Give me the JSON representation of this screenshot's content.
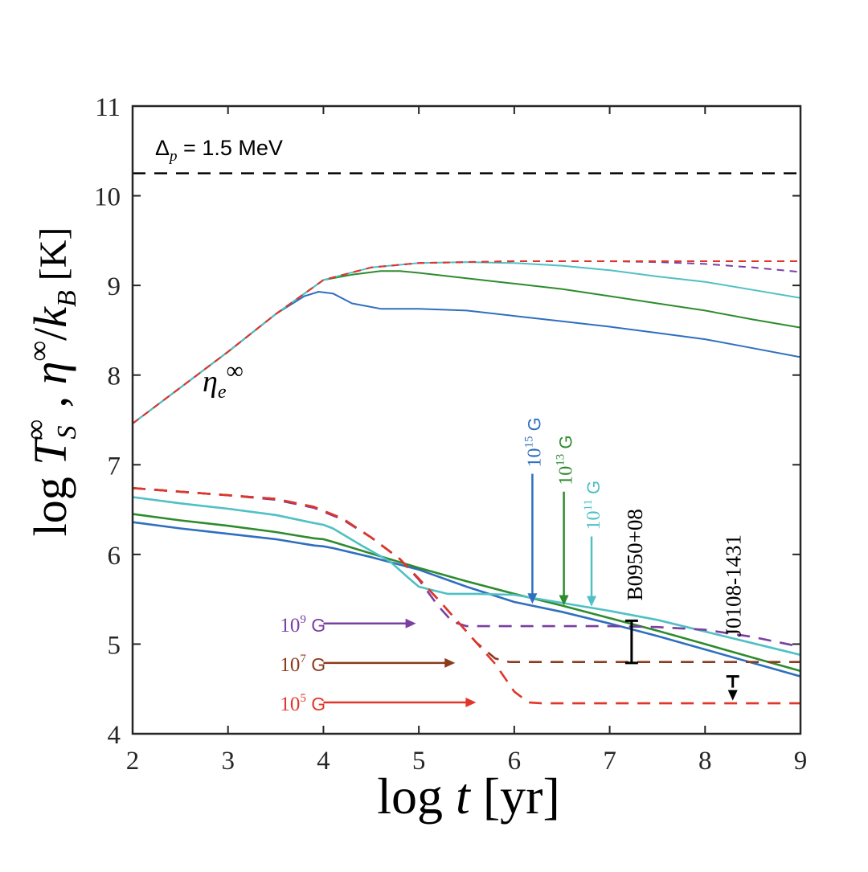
{
  "chart_data": {
    "type": "line",
    "xlabel": "log t [yr]",
    "ylabel": "log T_S^∞ , η^∞/k_B [K]",
    "xlim": [
      2,
      9
    ],
    "ylim": [
      4,
      11
    ],
    "xticks": [
      2,
      3,
      4,
      5,
      6,
      7,
      8,
      9
    ],
    "yticks": [
      4,
      5,
      6,
      7,
      8,
      9,
      10,
      11
    ],
    "grid": false,
    "annotation_delta": "Δp = 1.5 MeV",
    "eta_label": "ηe∞",
    "reference_line": {
      "name": "Δp level",
      "y": 10.25,
      "color": "#000000",
      "style": "dashed"
    },
    "eta_series": [
      {
        "name": "η∞ 10^15 G",
        "color": "#2f6fbf",
        "style": "solid",
        "x": [
          2.0,
          2.5,
          3.0,
          3.5,
          3.8,
          3.95,
          4.1,
          4.3,
          4.6,
          5.0,
          5.5,
          6.0,
          6.5,
          7.0,
          7.5,
          8.0,
          8.5,
          9.0
        ],
        "y": [
          7.46,
          7.86,
          8.26,
          8.68,
          8.88,
          8.93,
          8.91,
          8.8,
          8.74,
          8.74,
          8.72,
          8.66,
          8.6,
          8.54,
          8.47,
          8.4,
          8.3,
          8.2
        ]
      },
      {
        "name": "η∞ 10^13 G",
        "color": "#2e8b2e",
        "style": "solid",
        "x": [
          2.0,
          2.5,
          3.0,
          3.5,
          4.0,
          4.3,
          4.6,
          4.8,
          5.0,
          5.5,
          6.0,
          6.5,
          7.0,
          7.5,
          8.0,
          8.5,
          9.0
        ],
        "y": [
          7.46,
          7.86,
          8.26,
          8.68,
          9.06,
          9.12,
          9.16,
          9.16,
          9.14,
          9.08,
          9.02,
          8.96,
          8.88,
          8.8,
          8.72,
          8.62,
          8.53
        ]
      },
      {
        "name": "η∞ 10^11 G",
        "color": "#4fc0c4",
        "style": "solid",
        "x": [
          2.0,
          2.5,
          3.0,
          3.5,
          4.0,
          4.5,
          5.0,
          5.5,
          6.0,
          6.5,
          7.0,
          7.5,
          8.0,
          8.5,
          9.0
        ],
        "y": [
          7.46,
          7.86,
          8.26,
          8.68,
          9.06,
          9.2,
          9.25,
          9.26,
          9.25,
          9.22,
          9.17,
          9.1,
          9.04,
          8.95,
          8.86
        ]
      },
      {
        "name": "η∞ 10^9 G",
        "color": "#7b3ea3",
        "style": "dashed",
        "x": [
          2.0,
          2.5,
          3.0,
          3.5,
          4.0,
          4.5,
          5.0,
          5.5,
          6.0,
          6.5,
          7.0,
          7.5,
          8.0,
          8.5,
          9.0
        ],
        "y": [
          7.46,
          7.86,
          8.26,
          8.68,
          9.06,
          9.2,
          9.25,
          9.26,
          9.27,
          9.27,
          9.27,
          9.26,
          9.24,
          9.2,
          9.15
        ]
      },
      {
        "name": "η∞ 10^5 G",
        "color": "#e0362a",
        "style": "dashed",
        "x": [
          2.0,
          2.5,
          3.0,
          3.5,
          4.0,
          4.5,
          5.0,
          5.5,
          6.0,
          6.5,
          7.0,
          7.5,
          8.0,
          8.5,
          9.0
        ],
        "y": [
          7.46,
          7.86,
          8.26,
          8.68,
          9.06,
          9.2,
          9.25,
          9.26,
          9.27,
          9.27,
          9.27,
          9.27,
          9.27,
          9.27,
          9.27
        ]
      }
    ],
    "cooling_series": [
      {
        "name": "10^15 G",
        "color": "#2f6fbf",
        "style": "solid",
        "x": [
          2.0,
          2.5,
          3.0,
          3.5,
          3.9,
          4.0,
          4.1,
          4.5,
          5.0,
          5.5,
          6.0,
          6.5,
          7.0,
          7.5,
          8.0,
          8.5,
          9.0
        ],
        "y": [
          6.36,
          6.29,
          6.23,
          6.17,
          6.1,
          6.09,
          6.07,
          5.97,
          5.83,
          5.64,
          5.47,
          5.36,
          5.23,
          5.09,
          4.94,
          4.79,
          4.64
        ]
      },
      {
        "name": "10^13 G",
        "color": "#2e8b2e",
        "style": "solid",
        "x": [
          2.0,
          2.5,
          3.0,
          3.5,
          3.9,
          4.0,
          4.1,
          4.5,
          5.0,
          5.5,
          6.0,
          6.5,
          7.0,
          7.5,
          8.0,
          8.5,
          9.0
        ],
        "y": [
          6.45,
          6.38,
          6.32,
          6.25,
          6.18,
          6.17,
          6.14,
          6.01,
          5.85,
          5.7,
          5.56,
          5.43,
          5.29,
          5.15,
          5.0,
          4.85,
          4.7
        ]
      },
      {
        "name": "10^11 G",
        "color": "#4fc0c4",
        "style": "solid",
        "x": [
          2.0,
          2.5,
          3.0,
          3.5,
          3.9,
          4.0,
          4.1,
          4.4,
          4.7,
          4.9,
          5.0,
          5.15,
          5.3,
          5.6,
          6.0,
          6.5,
          7.0,
          7.5,
          8.0,
          8.5,
          9.0
        ],
        "y": [
          6.64,
          6.57,
          6.51,
          6.44,
          6.35,
          6.33,
          6.29,
          6.1,
          5.92,
          5.73,
          5.64,
          5.6,
          5.56,
          5.56,
          5.55,
          5.46,
          5.37,
          5.27,
          5.14,
          5.01,
          4.88
        ]
      },
      {
        "name": "10^9 G",
        "color": "#7b3ea3",
        "style": "dashed",
        "x": [
          2.0,
          2.5,
          3.0,
          3.5,
          3.9,
          4.2,
          4.5,
          4.8,
          5.0,
          5.2,
          5.35,
          5.5,
          6.0,
          6.5,
          7.0,
          7.5,
          8.0,
          8.5,
          9.0
        ],
        "y": [
          6.74,
          6.7,
          6.66,
          6.61,
          6.52,
          6.39,
          6.19,
          5.95,
          5.72,
          5.43,
          5.25,
          5.2,
          5.2,
          5.2,
          5.2,
          5.19,
          5.16,
          5.08,
          4.97
        ]
      },
      {
        "name": "10^7 G",
        "color": "#8b3a1e",
        "style": "dashed",
        "x": [
          2.0,
          2.5,
          3.0,
          3.5,
          3.9,
          4.2,
          4.5,
          4.8,
          5.0,
          5.2,
          5.4,
          5.6,
          5.8,
          5.95,
          6.1,
          7.0,
          8.0,
          9.0
        ],
        "y": [
          6.74,
          6.7,
          6.66,
          6.62,
          6.53,
          6.4,
          6.19,
          5.95,
          5.73,
          5.5,
          5.26,
          5.02,
          4.84,
          4.8,
          4.8,
          4.8,
          4.8,
          4.8
        ]
      },
      {
        "name": "10^5 G",
        "color": "#e0362a",
        "style": "dashed",
        "x": [
          2.0,
          2.5,
          3.0,
          3.5,
          3.9,
          4.2,
          4.5,
          4.8,
          5.0,
          5.2,
          5.4,
          5.6,
          5.8,
          6.0,
          6.15,
          6.3,
          7.0,
          8.0,
          9.0
        ],
        "y": [
          6.74,
          6.7,
          6.66,
          6.62,
          6.53,
          6.4,
          6.19,
          5.95,
          5.73,
          5.5,
          5.26,
          5.02,
          4.78,
          4.47,
          4.35,
          4.34,
          4.34,
          4.34,
          4.34
        ]
      }
    ],
    "down_arrows": [
      {
        "label_base": "10",
        "label_exp": "15",
        "label_unit": "G",
        "color": "#2f6fbf",
        "x": 6.19,
        "y_top": 6.9,
        "y_tip": 5.45
      },
      {
        "label_base": "10",
        "label_exp": "13",
        "label_unit": "G",
        "color": "#2e8b2e",
        "x": 6.52,
        "y_top": 6.7,
        "y_tip": 5.43
      },
      {
        "label_base": "10",
        "label_exp": "11",
        "label_unit": "G",
        "color": "#4fc0c4",
        "x": 6.81,
        "y_top": 6.2,
        "y_tip": 5.42
      }
    ],
    "right_arrows": [
      {
        "label_base": "10",
        "label_exp": "9",
        "label_unit": "G",
        "color": "#7b3ea3",
        "x_from": 4.0,
        "x_to": 4.97,
        "y": 5.23
      },
      {
        "label_base": "10",
        "label_exp": "7",
        "label_unit": "G",
        "color": "#8b3a1e",
        "x_from": 4.0,
        "x_to": 5.38,
        "y": 4.79
      },
      {
        "label_base": "10",
        "label_exp": "5",
        "label_unit": "G",
        "color": "#e0362a",
        "x_from": 4.0,
        "x_to": 5.6,
        "y": 4.35
      }
    ],
    "observations": [
      {
        "name": "B0950+08",
        "type": "errorbar",
        "x": 7.23,
        "y_low": 4.79,
        "y_high": 5.26
      },
      {
        "name": "J0108-1431",
        "type": "upper_limit",
        "x": 8.29,
        "y": 4.64
      }
    ]
  }
}
